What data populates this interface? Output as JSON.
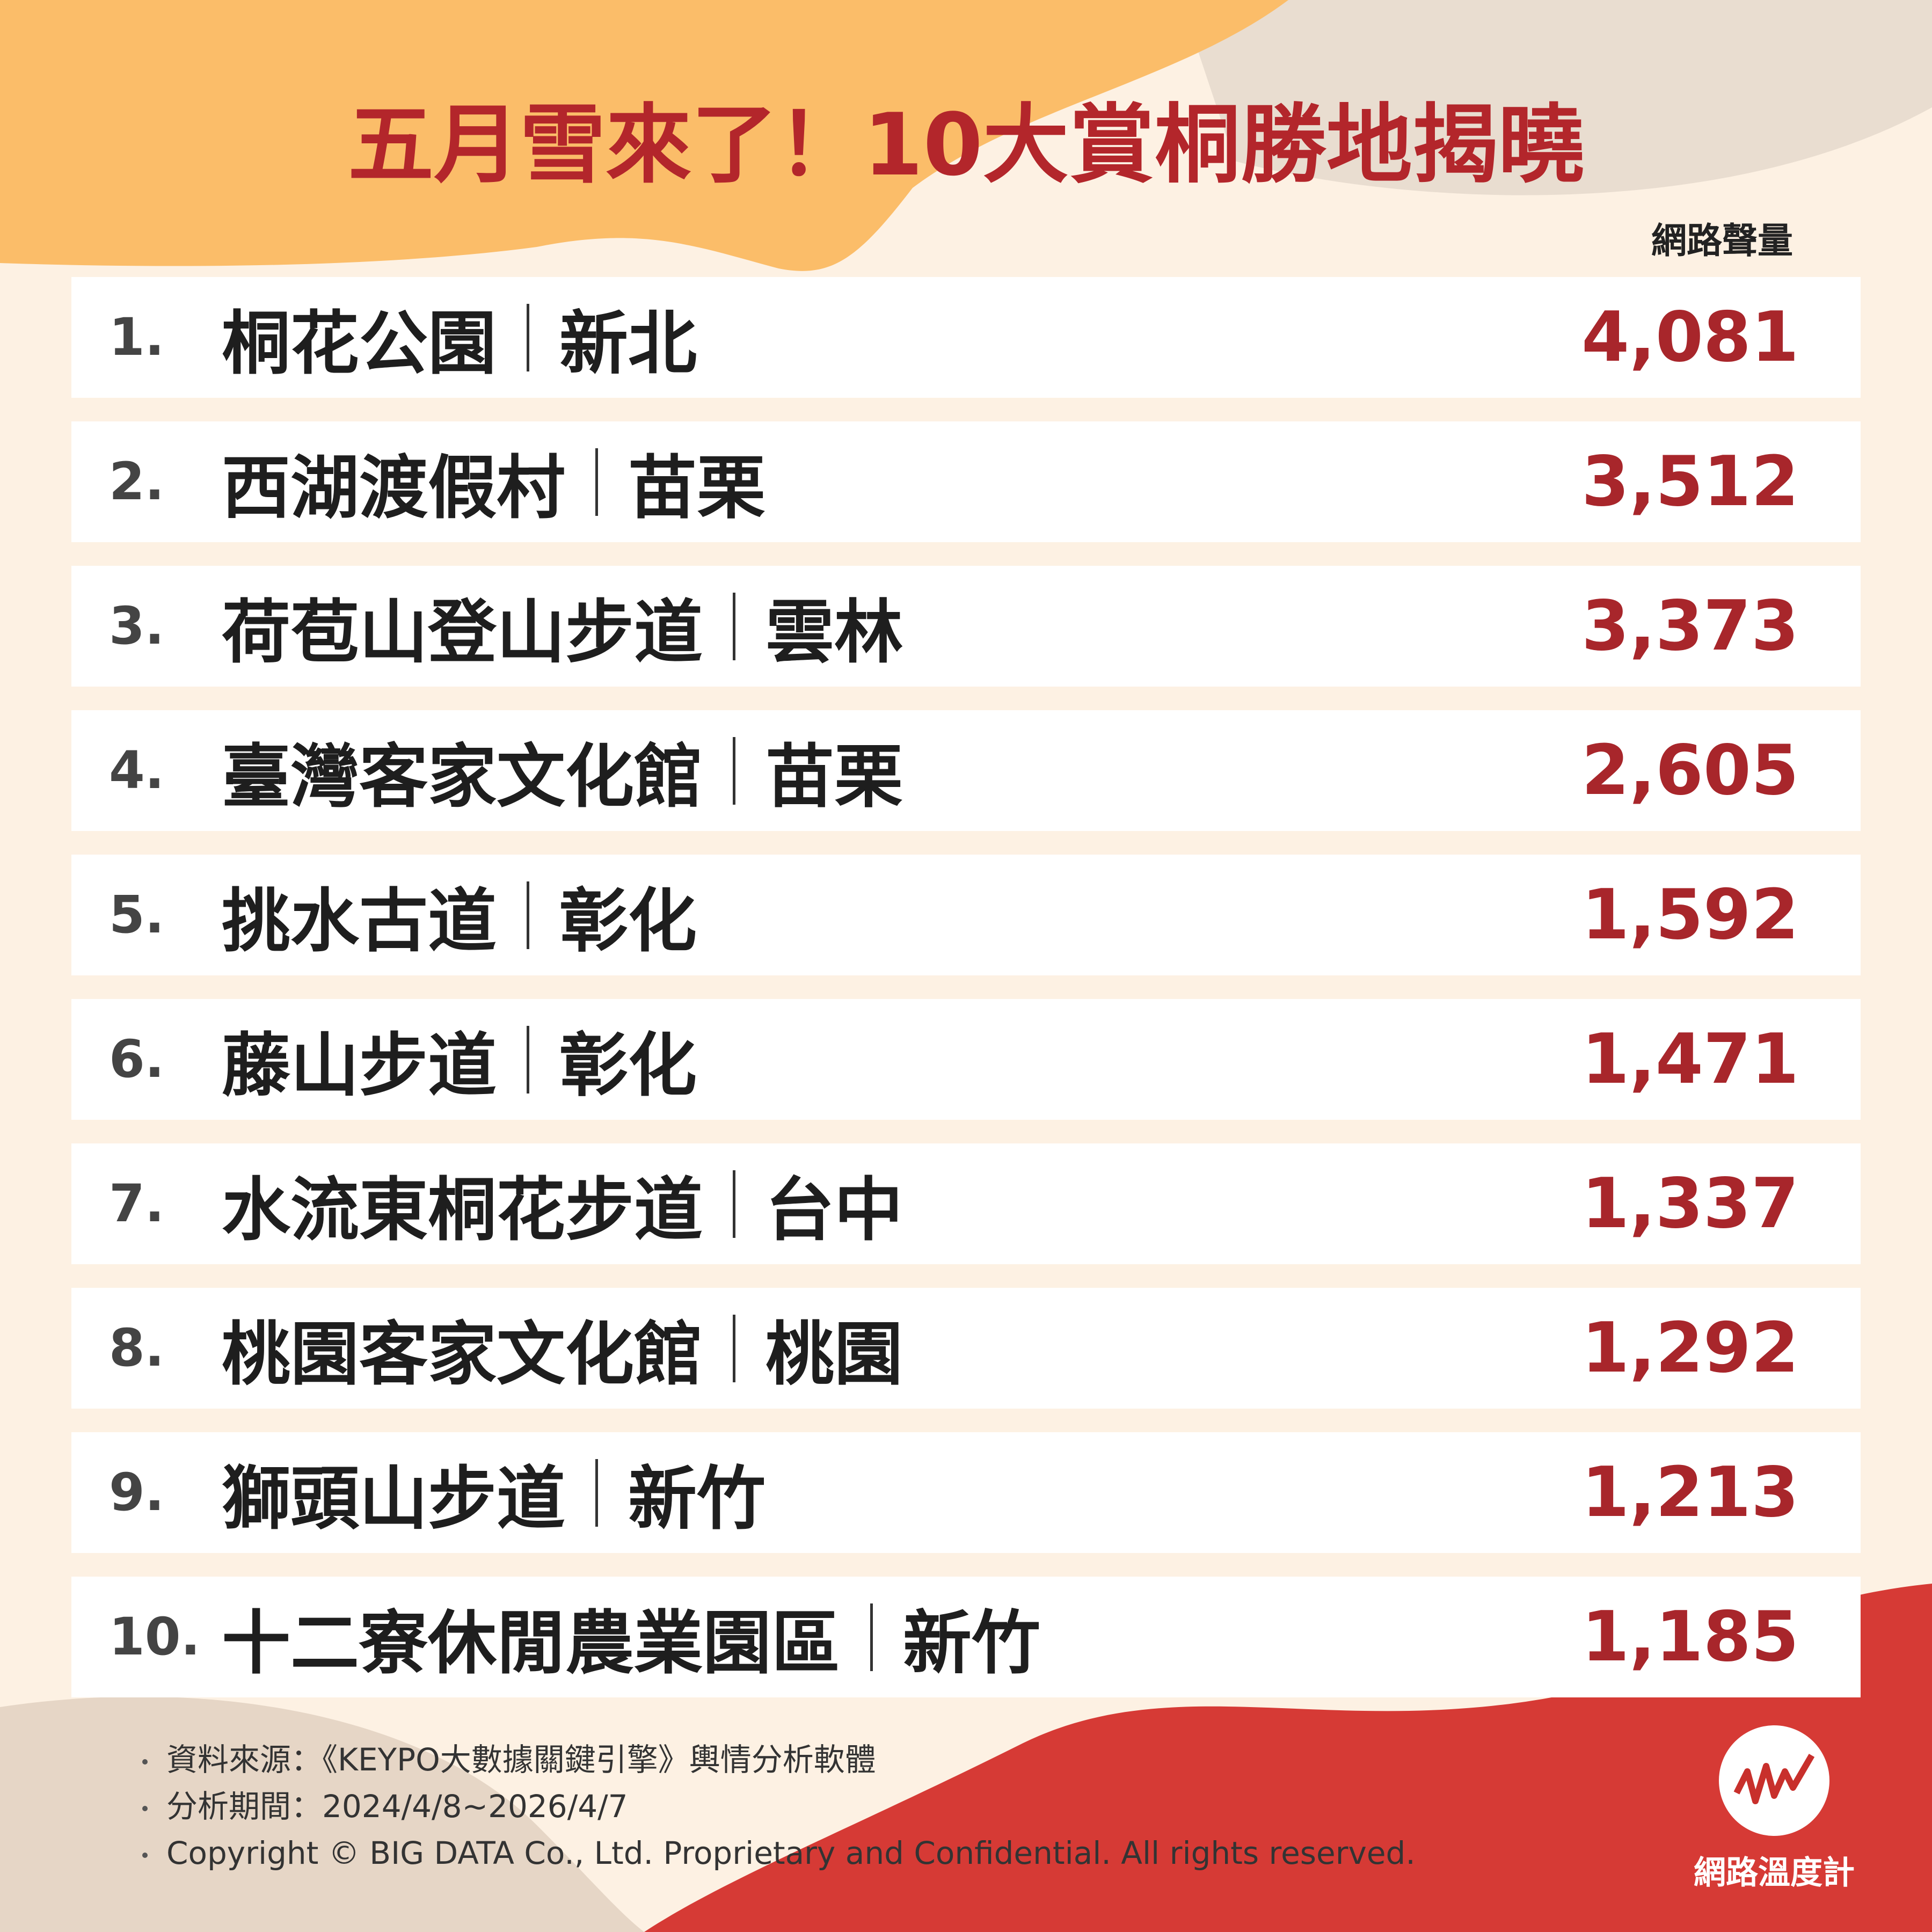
{
  "header": {
    "title": "五月雪來了！10大賞桐勝地揭曉",
    "column_label": "網路聲量"
  },
  "table": {
    "rows": [
      {
        "rank": "1.",
        "name": "桐花公園",
        "region": "新北",
        "volume": "4,081"
      },
      {
        "rank": "2.",
        "name": "西湖渡假村",
        "region": "苗栗",
        "volume": "3,512"
      },
      {
        "rank": "3.",
        "name": "荷苞山登山步道",
        "region": "雲林",
        "volume": "3,373"
      },
      {
        "rank": "4.",
        "name": "臺灣客家文化館",
        "region": "苗栗",
        "volume": "2,605"
      },
      {
        "rank": "5.",
        "name": "挑水古道",
        "region": "彰化",
        "volume": "1,592"
      },
      {
        "rank": "6.",
        "name": "藤山步道",
        "region": "彰化",
        "volume": "1,471"
      },
      {
        "rank": "7.",
        "name": "水流東桐花步道",
        "region": "台中",
        "volume": "1,337"
      },
      {
        "rank": "8.",
        "name": "桃園客家文化館",
        "region": "桃園",
        "volume": "1,292"
      },
      {
        "rank": "9.",
        "name": "獅頭山步道",
        "region": "新竹",
        "volume": "1,213"
      },
      {
        "rank": "10.",
        "name": "十二寮休閒農業園區",
        "region": "新竹",
        "volume": "1,185"
      }
    ]
  },
  "footer": {
    "notes": [
      "資料來源：《KEYPO大數據關鍵引擎》輿情分析軟體",
      "分析期間：2024/4/8~2026/4/7",
      "Copyright © BIG DATA Co., Ltd. Proprietary and Confidential. All rights reserved."
    ],
    "logo": "網路溫度計"
  }
}
